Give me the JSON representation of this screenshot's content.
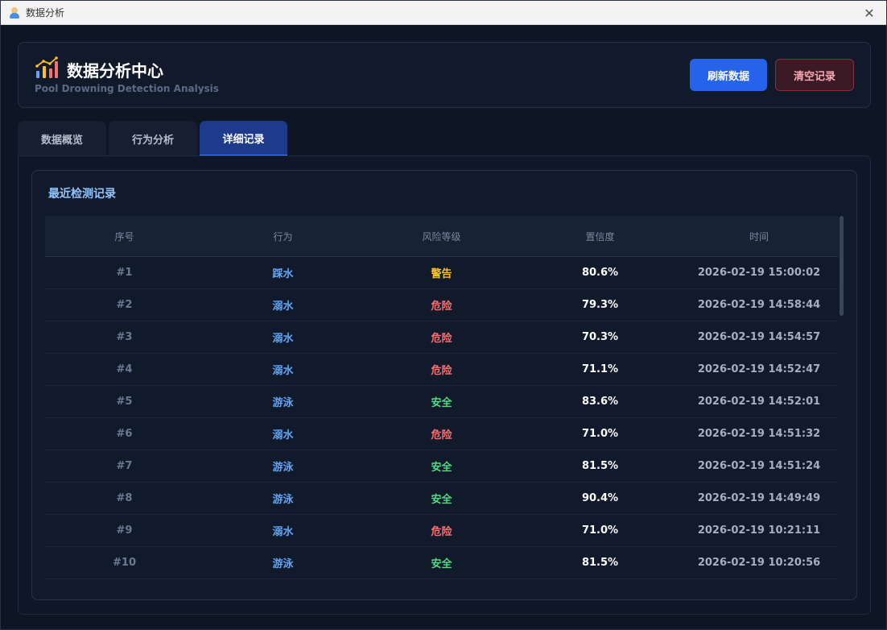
{
  "window": {
    "title": "数据分析",
    "close_glyph": "✕"
  },
  "header": {
    "title": "数据分析中心",
    "subtitle": "Pool Drowning Detection Analysis",
    "icon": "bar-chart-icon",
    "refresh_label": "刷新数据",
    "clear_label": "清空记录"
  },
  "tabs": [
    {
      "label": "数据概览",
      "active": false
    },
    {
      "label": "行为分析",
      "active": false
    },
    {
      "label": "详细记录",
      "active": true
    }
  ],
  "records": {
    "title": "最近检测记录",
    "columns": [
      "序号",
      "行为",
      "风险等级",
      "置信度",
      "时间"
    ],
    "rows": [
      {
        "index": "#1",
        "behavior": "踩水",
        "risk": "警告",
        "level": "warn",
        "confidence": "80.6%",
        "time": "2026-02-19 15:00:02"
      },
      {
        "index": "#2",
        "behavior": "溺水",
        "risk": "危险",
        "level": "danger",
        "confidence": "79.3%",
        "time": "2026-02-19 14:58:44"
      },
      {
        "index": "#3",
        "behavior": "溺水",
        "risk": "危险",
        "level": "danger",
        "confidence": "70.3%",
        "time": "2026-02-19 14:54:57"
      },
      {
        "index": "#4",
        "behavior": "溺水",
        "risk": "危险",
        "level": "danger",
        "confidence": "71.1%",
        "time": "2026-02-19 14:52:47"
      },
      {
        "index": "#5",
        "behavior": "游泳",
        "risk": "安全",
        "level": "safe",
        "confidence": "83.6%",
        "time": "2026-02-19 14:52:01"
      },
      {
        "index": "#6",
        "behavior": "溺水",
        "risk": "危险",
        "level": "danger",
        "confidence": "71.0%",
        "time": "2026-02-19 14:51:32"
      },
      {
        "index": "#7",
        "behavior": "游泳",
        "risk": "安全",
        "level": "safe",
        "confidence": "81.5%",
        "time": "2026-02-19 14:51:24"
      },
      {
        "index": "#8",
        "behavior": "游泳",
        "risk": "安全",
        "level": "safe",
        "confidence": "90.4%",
        "time": "2026-02-19 14:49:49"
      },
      {
        "index": "#9",
        "behavior": "溺水",
        "risk": "危险",
        "level": "danger",
        "confidence": "71.0%",
        "time": "2026-02-19 10:21:11"
      },
      {
        "index": "#10",
        "behavior": "游泳",
        "risk": "安全",
        "level": "safe",
        "confidence": "81.5%",
        "time": "2026-02-19 10:20:56"
      }
    ]
  },
  "colors": {
    "accent": "#2563eb",
    "warn": "#fbbf24",
    "danger": "#f87171",
    "safe": "#4ade80",
    "behavior": "#60a5fa"
  }
}
